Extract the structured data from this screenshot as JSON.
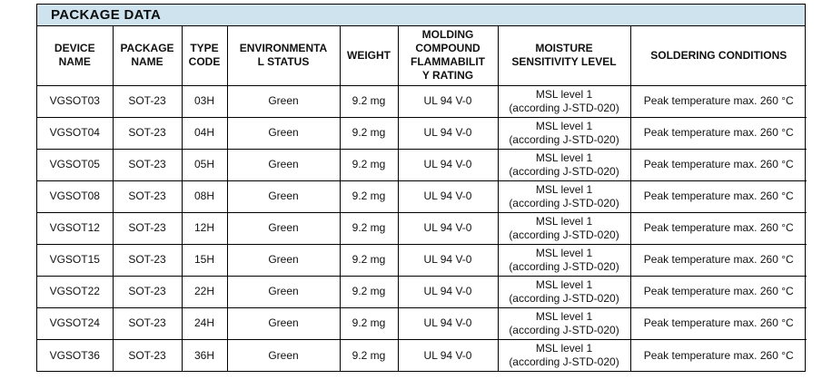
{
  "page": {
    "title": "PACKAGE DATA"
  },
  "colors": {
    "title_bg": "#cfe3ef",
    "border": "#000000",
    "text": "#111111"
  },
  "table": {
    "columns": [
      {
        "key": "device",
        "label": "DEVICE\nNAME"
      },
      {
        "key": "package",
        "label": "PACKAGE\nNAME"
      },
      {
        "key": "type_code",
        "label": "TYPE\nCODE"
      },
      {
        "key": "env_status",
        "label": "ENVIRONMENTA\nL STATUS"
      },
      {
        "key": "weight",
        "label": "WEIGHT"
      },
      {
        "key": "flammability",
        "label": "MOLDING\nCOMPOUND\nFLAMMABILIT\nY RATING"
      },
      {
        "key": "msl",
        "label": "MOISTURE\nSENSITIVITY LEVEL"
      },
      {
        "key": "soldering",
        "label": "SOLDERING CONDITIONS"
      }
    ],
    "rows": [
      {
        "device": "VGSOT03",
        "package": "SOT-23",
        "type_code": "03H",
        "env_status": "Green",
        "weight": "9.2 mg",
        "flammability": "UL 94 V-0",
        "msl": "MSL level 1\n(according J-STD-020)",
        "soldering": "Peak temperature max. 260 °C"
      },
      {
        "device": "VGSOT04",
        "package": "SOT-23",
        "type_code": "04H",
        "env_status": "Green",
        "weight": "9.2 mg",
        "flammability": "UL 94 V-0",
        "msl": "MSL level 1\n(according J-STD-020)",
        "soldering": "Peak temperature max. 260 °C"
      },
      {
        "device": "VGSOT05",
        "package": "SOT-23",
        "type_code": "05H",
        "env_status": "Green",
        "weight": "9.2 mg",
        "flammability": "UL 94 V-0",
        "msl": "MSL level 1\n(according J-STD-020)",
        "soldering": "Peak temperature max. 260 °C"
      },
      {
        "device": "VGSOT08",
        "package": "SOT-23",
        "type_code": "08H",
        "env_status": "Green",
        "weight": "9.2 mg",
        "flammability": "UL 94 V-0",
        "msl": "MSL level 1\n(according J-STD-020)",
        "soldering": "Peak temperature max. 260 °C"
      },
      {
        "device": "VGSOT12",
        "package": "SOT-23",
        "type_code": "12H",
        "env_status": "Green",
        "weight": "9.2 mg",
        "flammability": "UL 94 V-0",
        "msl": "MSL level 1\n(according J-STD-020)",
        "soldering": "Peak temperature max. 260 °C"
      },
      {
        "device": "VGSOT15",
        "package": "SOT-23",
        "type_code": "15H",
        "env_status": "Green",
        "weight": "9.2 mg",
        "flammability": "UL 94 V-0",
        "msl": "MSL level 1\n(according J-STD-020)",
        "soldering": "Peak temperature max. 260 °C"
      },
      {
        "device": "VGSOT22",
        "package": "SOT-23",
        "type_code": "22H",
        "env_status": "Green",
        "weight": "9.2 mg",
        "flammability": "UL 94 V-0",
        "msl": "MSL level 1\n(according J-STD-020)",
        "soldering": "Peak temperature max. 260 °C"
      },
      {
        "device": "VGSOT24",
        "package": "SOT-23",
        "type_code": "24H",
        "env_status": "Green",
        "weight": "9.2 mg",
        "flammability": "UL 94 V-0",
        "msl": "MSL level 1\n(according J-STD-020)",
        "soldering": "Peak temperature max. 260 °C"
      },
      {
        "device": "VGSOT36",
        "package": "SOT-23",
        "type_code": "36H",
        "env_status": "Green",
        "weight": "9.2 mg",
        "flammability": "UL 94 V-0",
        "msl": "MSL level 1\n(according J-STD-020)",
        "soldering": "Peak temperature max. 260 °C"
      }
    ]
  }
}
